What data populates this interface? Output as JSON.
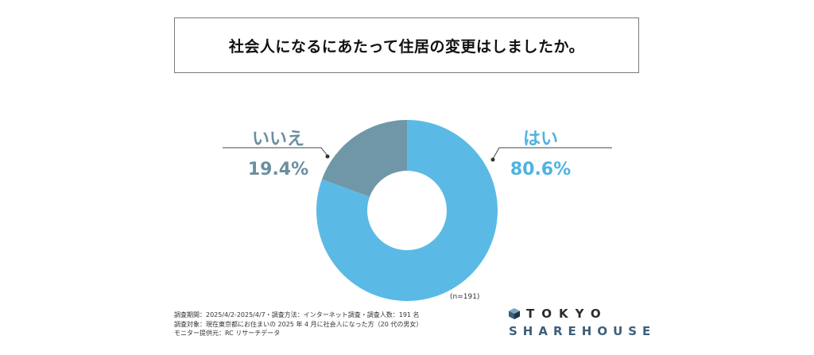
{
  "title": "社会人になるにあたって住居の変更はしましたか。",
  "chart_data": {
    "type": "pie",
    "donut": true,
    "slices": [
      {
        "label": "はい",
        "value": 80.6,
        "display": "80.6%",
        "color": "#5bbae5"
      },
      {
        "label": "いいえ",
        "value": 19.4,
        "display": "19.4%",
        "color": "#6f97a8"
      }
    ],
    "legend": "none",
    "sample_note": "(n=191)"
  },
  "footnotes": [
    "調査期間：2025/4/2-2025/4/7・調査方法：インターネット調査・調査人数：191 名",
    "調査対象：現在東京都にお住まいの 2025 年 4 月に社会人になった方（20 代の男女）",
    "モニター提供元：RC リサーチデータ"
  ],
  "logo": {
    "line1": "TOKYO",
    "line2": "SHAREHOUSE",
    "icon": "cube-icon"
  }
}
